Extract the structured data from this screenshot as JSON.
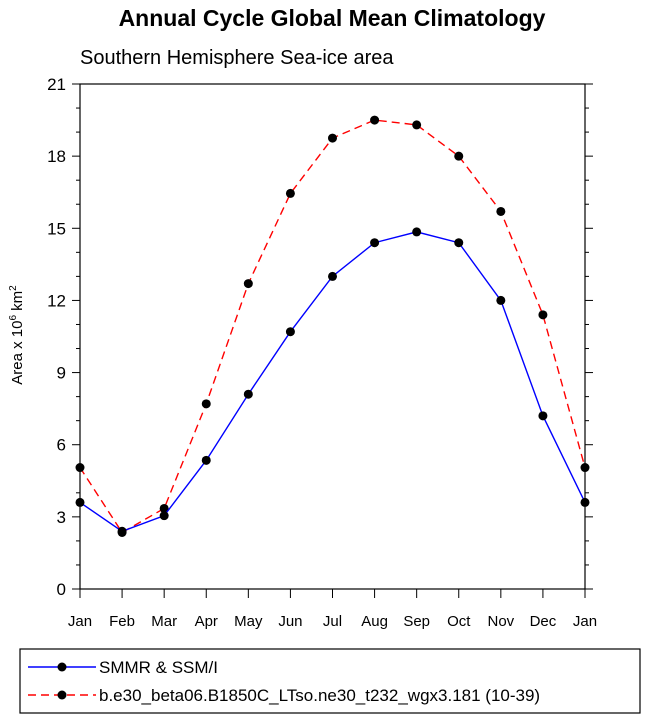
{
  "chart_data": {
    "type": "line",
    "title": "Annual Cycle Global Mean Climatology",
    "subtitle": "Southern Hemisphere Sea-ice area",
    "ylabel": {
      "prefix": "Area x 10",
      "exp1": "6",
      "mid": " km",
      "exp2": "2"
    },
    "xlabel": "",
    "x": [
      "Jan",
      "Feb",
      "Mar",
      "Apr",
      "May",
      "Jun",
      "Jul",
      "Aug",
      "Sep",
      "Oct",
      "Nov",
      "Dec",
      "Jan"
    ],
    "ylim": [
      0,
      21
    ],
    "yticks": [
      0,
      3,
      6,
      9,
      12,
      15,
      18,
      21
    ],
    "series": [
      {
        "name": "SMMR & SSM/I",
        "color": "#0000ff",
        "dash": "solid",
        "values": [
          3.6,
          2.4,
          3.05,
          5.35,
          8.1,
          10.7,
          13.0,
          14.4,
          14.85,
          14.4,
          12.0,
          7.2,
          3.6
        ]
      },
      {
        "name": "b.e30_beta06.B1850C_LTso.ne30_t232_wgx3.181 (10-39)",
        "color": "#ff0000",
        "dash": "dashed",
        "values": [
          5.05,
          2.35,
          3.35,
          7.7,
          12.7,
          16.45,
          18.75,
          19.5,
          19.3,
          18.0,
          15.7,
          11.4,
          5.05
        ]
      }
    ],
    "grid": false,
    "legend": "bottom"
  }
}
